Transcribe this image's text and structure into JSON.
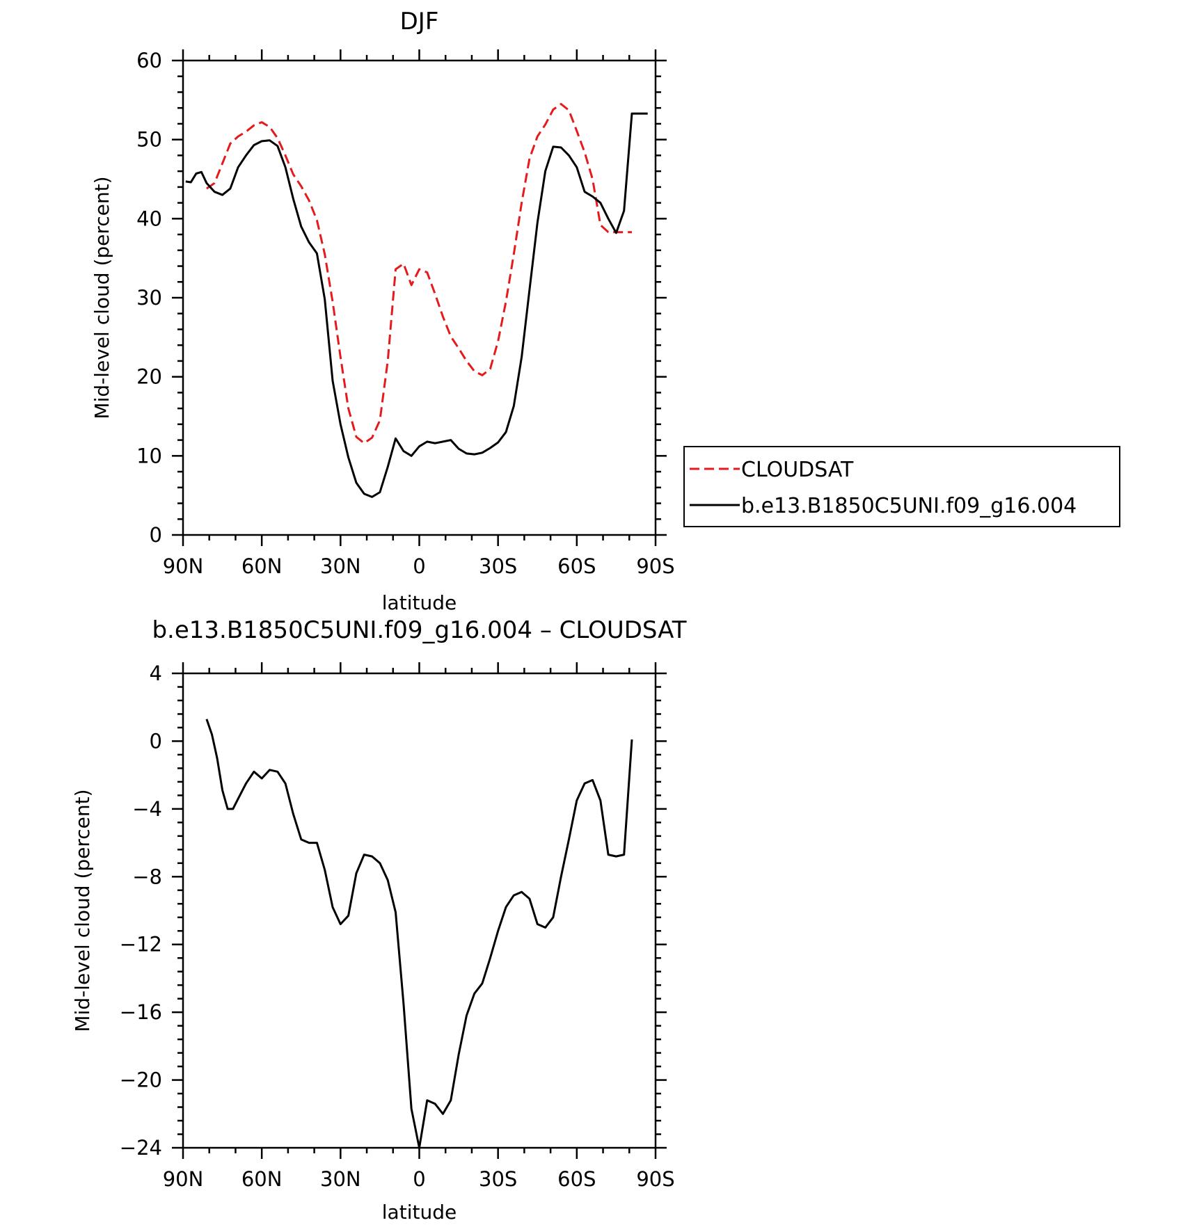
{
  "chart_data": [
    {
      "type": "line",
      "title": "DJF",
      "xlabel": "latitude",
      "ylabel": "Mid-level cloud (percent)",
      "xlim": [
        90,
        -90
      ],
      "ylim": [
        0,
        60
      ],
      "x_ticks": [
        {
          "value": 90,
          "label": "90N"
        },
        {
          "value": 60,
          "label": "60N"
        },
        {
          "value": 30,
          "label": "30N"
        },
        {
          "value": 0,
          "label": "0"
        },
        {
          "value": -30,
          "label": "30S"
        },
        {
          "value": -60,
          "label": "60S"
        },
        {
          "value": -90,
          "label": "90S"
        }
      ],
      "y_ticks": [
        {
          "value": 0,
          "label": "0"
        },
        {
          "value": 10,
          "label": "10"
        },
        {
          "value": 20,
          "label": "20"
        },
        {
          "value": 30,
          "label": "30"
        },
        {
          "value": 40,
          "label": "40"
        },
        {
          "value": 50,
          "label": "50"
        },
        {
          "value": 60,
          "label": "60"
        }
      ],
      "legend_position": "right",
      "series": [
        {
          "name": "CLOUDSAT",
          "color": "#e41a1c",
          "dash": "dashed",
          "x": [
            81,
            78,
            75,
            72,
            69,
            66,
            63,
            60,
            57,
            54,
            51,
            48,
            45,
            42,
            39,
            36,
            33,
            30,
            27,
            24,
            21,
            18,
            15,
            12,
            9,
            6,
            3,
            0,
            -3,
            -6,
            -9,
            -12,
            -15,
            -18,
            -21,
            -24,
            -27,
            -30,
            -33,
            -36,
            -39,
            -42,
            -45,
            -48,
            -51,
            -54,
            -57,
            -60,
            -63,
            -66,
            -69,
            -72,
            -75,
            -78,
            -81
          ],
          "y": [
            43.8,
            44.5,
            47,
            49.5,
            50.4,
            51,
            51.8,
            52.2,
            51.6,
            50.2,
            48,
            45.6,
            44.1,
            42.3,
            39.8,
            35.5,
            29.5,
            22.5,
            16,
            12.4,
            11.6,
            12.3,
            14.5,
            22,
            33.6,
            34.3,
            31.6,
            33.6,
            33.2,
            30.5,
            27.6,
            25.1,
            23.6,
            22,
            20.7,
            20.2,
            21,
            24.5,
            29.5,
            35.5,
            42,
            47.6,
            50.4,
            51.9,
            53.8,
            54.5,
            53.7,
            51.1,
            48.4,
            45,
            39.2,
            38.3,
            38.3,
            38.3,
            38.3
          ]
        },
        {
          "name": "b.e13.B1850C5UNI.f09_g16.004",
          "color": "#000000",
          "dash": "solid",
          "x": [
            89,
            87,
            85,
            83,
            81,
            78,
            75,
            72,
            69,
            66,
            63,
            60,
            57,
            54,
            51,
            48,
            45,
            42,
            39,
            36,
            33,
            30,
            27,
            24,
            21,
            18,
            15,
            12,
            9,
            6,
            3,
            0,
            -3,
            -6,
            -9,
            -12,
            -15,
            -18,
            -21,
            -24,
            -27,
            -30,
            -33,
            -36,
            -39,
            -42,
            -45,
            -48,
            -51,
            -54,
            -57,
            -60,
            -63,
            -66,
            -69,
            -72,
            -75,
            -78,
            -81,
            -83,
            -85,
            -87
          ],
          "y": [
            44.7,
            44.6,
            45.7,
            45.9,
            44.5,
            43.4,
            43,
            43.8,
            46.5,
            48,
            49.3,
            49.8,
            49.9,
            49.2,
            46.5,
            42.5,
            39,
            37,
            35.6,
            29.8,
            19.5,
            14,
            9.8,
            6.6,
            5.2,
            4.8,
            5.4,
            8.6,
            12.2,
            10.6,
            10,
            11.2,
            11.8,
            11.6,
            11.8,
            12,
            10.9,
            10.3,
            10.2,
            10.4,
            11,
            11.7,
            13,
            16.3,
            22.5,
            31,
            39.5,
            46,
            49.1,
            49,
            48,
            46.5,
            43.4,
            42.8,
            42,
            40,
            38.2,
            41,
            53.3,
            53.3,
            53.3,
            53.3
          ]
        }
      ]
    },
    {
      "type": "line",
      "title": "b.e13.B1850C5UNI.f09_g16.004 – CLOUDSAT",
      "xlabel": "latitude",
      "ylabel": "Mid-level cloud (percent)",
      "xlim": [
        90,
        -90
      ],
      "ylim": [
        -24,
        4
      ],
      "x_ticks": [
        {
          "value": 90,
          "label": "90N"
        },
        {
          "value": 60,
          "label": "60N"
        },
        {
          "value": 30,
          "label": "30N"
        },
        {
          "value": 0,
          "label": "0"
        },
        {
          "value": -30,
          "label": "30S"
        },
        {
          "value": -60,
          "label": "60S"
        },
        {
          "value": -90,
          "label": "90S"
        }
      ],
      "y_ticks": [
        {
          "value": 4,
          "label": "4"
        },
        {
          "value": 0,
          "label": "0"
        },
        {
          "value": -4,
          "label": "−4"
        },
        {
          "value": -8,
          "label": "−8"
        },
        {
          "value": -12,
          "label": "−12"
        },
        {
          "value": -16,
          "label": "−16"
        },
        {
          "value": -20,
          "label": "−20"
        },
        {
          "value": -24,
          "label": "−24"
        }
      ],
      "series": [
        {
          "color": "#000000",
          "dash": "solid",
          "x": [
            81,
            79,
            77,
            75,
            73,
            71,
            69,
            66,
            63,
            60,
            57,
            54,
            51,
            48,
            45,
            42,
            39,
            36,
            33,
            30,
            27,
            24,
            21,
            18,
            15,
            12,
            9,
            6,
            3,
            0,
            -3,
            -6,
            -9,
            -12,
            -15,
            -18,
            -21,
            -24,
            -27,
            -30,
            -33,
            -36,
            -39,
            -42,
            -45,
            -48,
            -51,
            -54,
            -57,
            -60,
            -63,
            -66,
            -69,
            -72,
            -75,
            -78,
            -81
          ],
          "y": [
            1.3,
            0.4,
            -1,
            -2.9,
            -4,
            -4,
            -3.4,
            -2.5,
            -1.8,
            -2.2,
            -1.7,
            -1.8,
            -2.5,
            -4.3,
            -5.8,
            -6,
            -6,
            -7.6,
            -9.8,
            -10.8,
            -10.3,
            -7.8,
            -6.7,
            -6.8,
            -7.2,
            -8.2,
            -10.1,
            -15.5,
            -21.7,
            -24,
            -21.2,
            -21.4,
            -22,
            -21.2,
            -18.5,
            -16.2,
            -14.9,
            -14.3,
            -12.8,
            -11.2,
            -9.8,
            -9.1,
            -8.9,
            -9.3,
            -10.8,
            -11,
            -10.4,
            -8,
            -5.8,
            -3.5,
            -2.5,
            -2.3,
            -3.5,
            -6.7,
            -6.8,
            -6.7,
            0.1
          ]
        }
      ]
    }
  ]
}
